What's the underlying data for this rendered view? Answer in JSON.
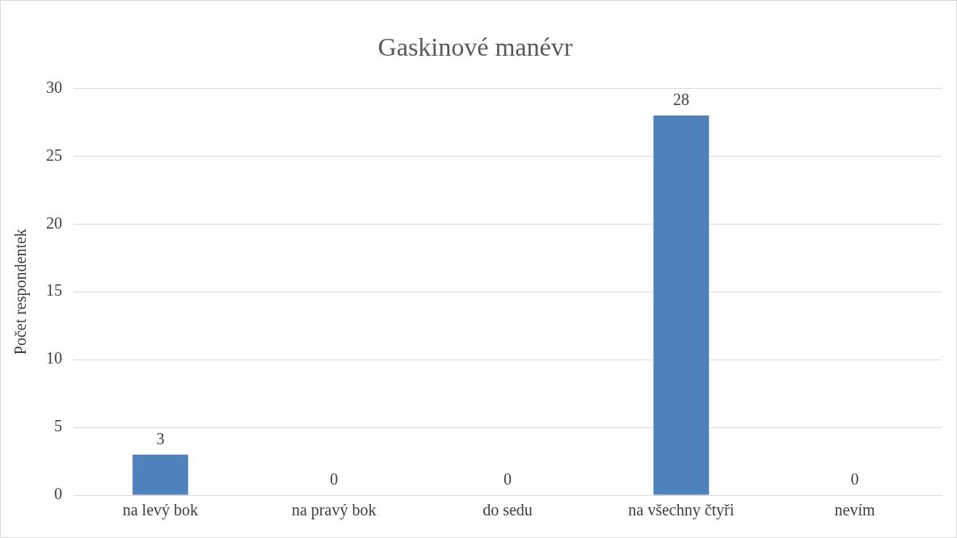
{
  "chart_data": {
    "type": "bar",
    "title": "Gaskinové manévr",
    "ylabel": "Počet respondentek",
    "categories": [
      "na levý bok",
      "na pravý bok",
      "do sedu",
      "na všechny čtyři",
      "nevím"
    ],
    "values": [
      3,
      0,
      0,
      28,
      0
    ],
    "color": "#4f81bd",
    "ylim": [
      0,
      30
    ],
    "yticks": [
      0,
      5,
      10,
      15,
      20,
      25,
      30
    ],
    "grid": "y",
    "data_labels": true,
    "legend": false
  }
}
